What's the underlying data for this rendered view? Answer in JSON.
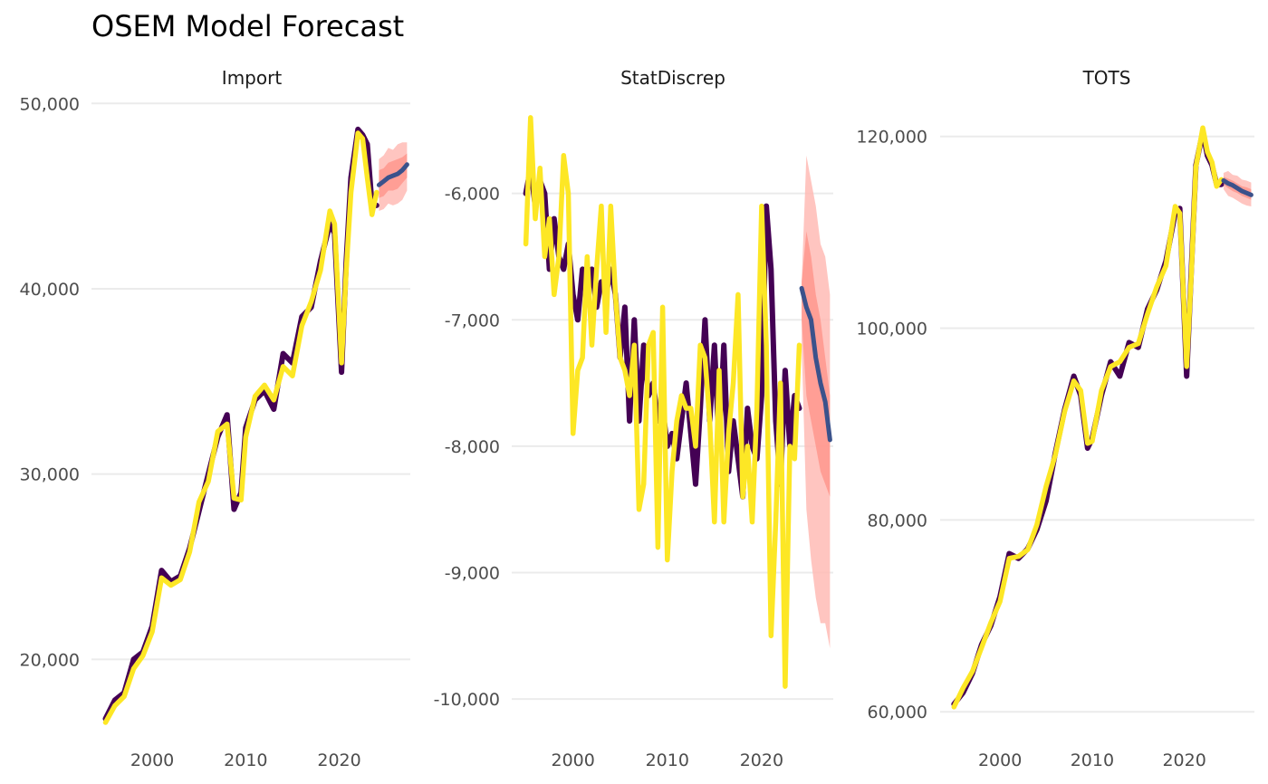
{
  "title": "OSEM Model Forecast",
  "colors": {
    "history_fit": "#440154",
    "actual": "#FDE725",
    "forecast": "#3B528B",
    "ci_outer": "#FFBBB5",
    "ci_inner": "#FF968D",
    "grid": "#EBEBEB"
  },
  "chart_data": [
    {
      "type": "line",
      "panel": "Import",
      "x_ticks": [
        2000,
        2010,
        2020
      ],
      "x_tick_labels": [
        "2000",
        "2010",
        "2020"
      ],
      "xlim": [
        1993.5,
        2027.6
      ],
      "y_ticks": [
        20000,
        30000,
        40000,
        50000
      ],
      "y_tick_labels": [
        "20,000",
        "30,000",
        "40,000",
        "50,000"
      ],
      "ylim": [
        16500,
        50600
      ],
      "series": [
        {
          "role": "fit",
          "x": [
            1995,
            1996,
            1997,
            1998,
            1999,
            2000,
            2001,
            2002,
            2003,
            2004,
            2005,
            2006,
            2007,
            2008,
            2008.75,
            2009.5,
            2010,
            2011,
            2012,
            2013,
            2014,
            2015,
            2016,
            2017,
            2018,
            2019,
            2019.5,
            2020.25,
            2020.75,
            2021.25,
            2022,
            2022.5,
            2023,
            2023.5,
            2024
          ],
          "y": [
            16800,
            17800,
            18200,
            20000,
            20400,
            21800,
            24800,
            24200,
            24500,
            26000,
            28000,
            30000,
            32000,
            33200,
            28100,
            29000,
            32500,
            34000,
            34500,
            33500,
            36500,
            36000,
            38500,
            39000,
            41500,
            43500,
            43000,
            35500,
            41500,
            46000,
            48600,
            48300,
            47800,
            44500,
            44500
          ]
        },
        {
          "role": "actual",
          "x": [
            1995,
            1996,
            1997,
            1998,
            1999,
            2000,
            2001,
            2002,
            2003,
            2004,
            2005,
            2006,
            2007,
            2008,
            2008.75,
            2009.5,
            2010,
            2011,
            2012,
            2013,
            2014,
            2015,
            2016,
            2017,
            2018,
            2019,
            2019.5,
            2020.25,
            2020.75,
            2021.25,
            2022,
            2022.5,
            2023,
            2023.5,
            2024
          ],
          "y": [
            16600,
            17500,
            18000,
            19500,
            20200,
            21500,
            24400,
            24000,
            24300,
            25800,
            28500,
            29600,
            32300,
            32700,
            28700,
            28600,
            32000,
            34200,
            34800,
            34000,
            35800,
            35300,
            38000,
            39300,
            41000,
            44200,
            43500,
            36000,
            41000,
            45200,
            48400,
            48100,
            46000,
            44000,
            45200
          ]
        },
        {
          "role": "forecast",
          "x": [
            2024.25,
            2024.75,
            2025.25,
            2025.75,
            2026.25,
            2026.75,
            2027.25
          ],
          "y": [
            45600,
            45800,
            46000,
            46100,
            46200,
            46400,
            46700
          ]
        }
      ],
      "ci_outer": {
        "x": [
          2024.25,
          2024.75,
          2025.25,
          2025.75,
          2026.25,
          2026.75,
          2027.25
        ],
        "upper": [
          47000,
          47200,
          47600,
          47500,
          47800,
          47900,
          47900
        ],
        "lower": [
          44200,
          44300,
          44600,
          44500,
          44600,
          44800,
          45300
        ]
      },
      "ci_inner": {
        "x": [
          2024.25,
          2024.75,
          2025.25,
          2025.75,
          2026.25,
          2026.75,
          2027.25
        ],
        "upper": [
          46400,
          46500,
          46800,
          46900,
          47000,
          47100,
          47300
        ],
        "lower": [
          44900,
          45000,
          45300,
          45300,
          45400,
          45700,
          46000
        ]
      }
    },
    {
      "type": "line",
      "panel": "StatDiscrep",
      "x_ticks": [
        2000,
        2010,
        2020
      ],
      "x_tick_labels": [
        "2000",
        "2010",
        "2020"
      ],
      "xlim": [
        1993.5,
        2027.6
      ],
      "y_ticks": [
        -10000,
        -9000,
        -8000,
        -7000,
        -6000
      ],
      "y_tick_labels": [
        "-10,000",
        "-9,000",
        "-8,000",
        "-7,000",
        "-6,000"
      ],
      "ylim": [
        -10200,
        -5200
      ],
      "series": [
        {
          "role": "fit",
          "x": [
            1995,
            1995.5,
            1996,
            1996.5,
            1997,
            1997.5,
            1998,
            1998.5,
            1999,
            1999.5,
            2000,
            2000.5,
            2001,
            2001.5,
            2002,
            2002.5,
            2003,
            2003.5,
            2004,
            2004.5,
            2005,
            2005.5,
            2006,
            2006.5,
            2007,
            2007.5,
            2008,
            2008.5,
            2009,
            2009.5,
            2010,
            2010.5,
            2011,
            2011.5,
            2012,
            2012.5,
            2013,
            2013.5,
            2014,
            2014.5,
            2015,
            2015.5,
            2016,
            2016.5,
            2017,
            2017.5,
            2018,
            2018.5,
            2019,
            2019.5,
            2020,
            2020.5,
            2021,
            2021.5,
            2022,
            2022.5,
            2023,
            2023.5,
            2024
          ],
          "y": [
            -6000,
            -5800,
            -6100,
            -5900,
            -6000,
            -6600,
            -6200,
            -6500,
            -6600,
            -6400,
            -6800,
            -7000,
            -6600,
            -6800,
            -6600,
            -6900,
            -6700,
            -6800,
            -6600,
            -6800,
            -7300,
            -6900,
            -7800,
            -7000,
            -7800,
            -7200,
            -7600,
            -7500,
            -7800,
            -7700,
            -8000,
            -7900,
            -8100,
            -7800,
            -7500,
            -7900,
            -8300,
            -7700,
            -7000,
            -7800,
            -7200,
            -8000,
            -7200,
            -8200,
            -7800,
            -8100,
            -8400,
            -7700,
            -8000,
            -8100,
            -7600,
            -6100,
            -6600,
            -7800,
            -8300,
            -7400,
            -8000,
            -7600,
            -7700
          ]
        },
        {
          "role": "actual",
          "x": [
            1995,
            1995.5,
            1996,
            1996.5,
            1997,
            1997.5,
            1998,
            1998.5,
            1999,
            1999.5,
            2000,
            2000.5,
            2001,
            2001.5,
            2002,
            2002.5,
            2003,
            2003.5,
            2004,
            2004.5,
            2005,
            2005.5,
            2006,
            2006.5,
            2007,
            2007.5,
            2008,
            2008.5,
            2009,
            2009.5,
            2010,
            2010.5,
            2011,
            2011.5,
            2012,
            2012.5,
            2013,
            2013.5,
            2014,
            2014.5,
            2015,
            2015.5,
            2016,
            2016.5,
            2017,
            2017.5,
            2018,
            2018.5,
            2019,
            2019.5,
            2020,
            2020.5,
            2021,
            2021.5,
            2022,
            2022.5,
            2023,
            2023.5,
            2024
          ],
          "y": [
            -6400,
            -5400,
            -6200,
            -5800,
            -6500,
            -6200,
            -6800,
            -6500,
            -5700,
            -6000,
            -7900,
            -7400,
            -7300,
            -6500,
            -7200,
            -6600,
            -6100,
            -7100,
            -6100,
            -6800,
            -7300,
            -7400,
            -7600,
            -7200,
            -8500,
            -8300,
            -7200,
            -7100,
            -8800,
            -6900,
            -8900,
            -8200,
            -7800,
            -7600,
            -7700,
            -7700,
            -8000,
            -7200,
            -7300,
            -7800,
            -8600,
            -7400,
            -8600,
            -7900,
            -7500,
            -6800,
            -8400,
            -8000,
            -8600,
            -7700,
            -6100,
            -7200,
            -9500,
            -8600,
            -7500,
            -9900,
            -8000,
            -8100,
            -7200
          ]
        },
        {
          "role": "forecast",
          "x": [
            2024.25,
            2024.75,
            2025.25,
            2025.75,
            2026.25,
            2026.75,
            2027.25
          ],
          "y": [
            -6750,
            -6900,
            -7000,
            -7300,
            -7500,
            -7650,
            -7950
          ]
        }
      ],
      "ci_outer": {
        "x": [
          2024.25,
          2024.75,
          2025.25,
          2025.75,
          2026.25,
          2026.75,
          2027.25
        ],
        "upper": [
          -6700,
          -5700,
          -5900,
          -6100,
          -6400,
          -6500,
          -6800
        ],
        "lower": [
          -7200,
          -8500,
          -8900,
          -9200,
          -9400,
          -9400,
          -9600
        ]
      },
      "ci_inner": {
        "x": [
          2024.25,
          2024.75,
          2025.25,
          2025.75,
          2026.25,
          2026.75,
          2027.25
        ],
        "upper": [
          -6700,
          -6300,
          -6500,
          -6800,
          -7000,
          -7300,
          -7600
        ],
        "lower": [
          -7000,
          -7600,
          -7800,
          -8000,
          -8200,
          -8300,
          -8400
        ]
      }
    },
    {
      "type": "line",
      "panel": "TOTS",
      "x_ticks": [
        2000,
        2010,
        2020
      ],
      "x_tick_labels": [
        "2000",
        "2010",
        "2020"
      ],
      "xlim": [
        1993.5,
        2027.6
      ],
      "y_ticks": [
        60000,
        80000,
        100000,
        120000
      ],
      "y_tick_labels": [
        "60,000",
        "80,000",
        "100,000",
        "120,000"
      ],
      "ylim": [
        58700,
        124600
      ],
      "series": [
        {
          "role": "fit",
          "x": [
            1995,
            1996,
            1997,
            1998,
            1999,
            2000,
            2001,
            2002,
            2003,
            2004,
            2005,
            2006,
            2007,
            2008,
            2008.75,
            2009.5,
            2010,
            2011,
            2012,
            2013,
            2014,
            2015,
            2016,
            2017,
            2018,
            2019,
            2019.5,
            2020.25,
            2020.75,
            2021.25,
            2022,
            2022.5,
            2023,
            2023.5,
            2024
          ],
          "y": [
            60800,
            62000,
            64000,
            67000,
            69000,
            72000,
            76500,
            76000,
            77000,
            79000,
            82000,
            87000,
            91500,
            95000,
            93000,
            87500,
            88500,
            93000,
            96500,
            95000,
            98500,
            98000,
            102000,
            104000,
            107000,
            112000,
            112500,
            95000,
            106000,
            117000,
            120500,
            118000,
            117000,
            115000,
            115000
          ]
        },
        {
          "role": "actual",
          "x": [
            1995,
            1996,
            1997,
            1998,
            1999,
            2000,
            2001,
            2002,
            2003,
            2004,
            2005,
            2006,
            2007,
            2008,
            2008.75,
            2009.5,
            2010,
            2011,
            2012,
            2013,
            2014,
            2015,
            2016,
            2017,
            2018,
            2019,
            2019.5,
            2020.25,
            2020.75,
            2021.25,
            2022,
            2022.5,
            2023,
            2023.5,
            2024
          ],
          "y": [
            60500,
            62500,
            64200,
            66700,
            69300,
            71500,
            76000,
            76200,
            76900,
            79500,
            83500,
            86800,
            91300,
            94500,
            93500,
            88000,
            88200,
            93500,
            96000,
            96500,
            98000,
            98400,
            101500,
            104300,
            106500,
            112700,
            112000,
            96000,
            105500,
            116800,
            120900,
            118400,
            117300,
            114800,
            115500
          ]
        },
        {
          "role": "forecast",
          "x": [
            2024.25,
            2024.75,
            2025.25,
            2025.75,
            2026.25,
            2026.75,
            2027.25
          ],
          "y": [
            115400,
            115100,
            114900,
            114600,
            114300,
            114100,
            113900
          ]
        }
      ],
      "ci_outer": {
        "x": [
          2024.25,
          2024.75,
          2025.25,
          2025.75,
          2026.25,
          2026.75,
          2027.25
        ],
        "upper": [
          116200,
          116400,
          116000,
          115900,
          115500,
          115400,
          115200
        ],
        "lower": [
          114500,
          113800,
          113600,
          113300,
          113000,
          112800,
          112700
        ]
      },
      "ci_inner": {
        "x": [
          2024.25,
          2024.75,
          2025.25,
          2025.75,
          2026.25,
          2026.75,
          2027.25
        ],
        "upper": [
          115800,
          115600,
          115400,
          115100,
          114800,
          114700,
          114500
        ],
        "lower": [
          115000,
          114600,
          114300,
          114100,
          113800,
          113600,
          113400
        ]
      }
    }
  ]
}
